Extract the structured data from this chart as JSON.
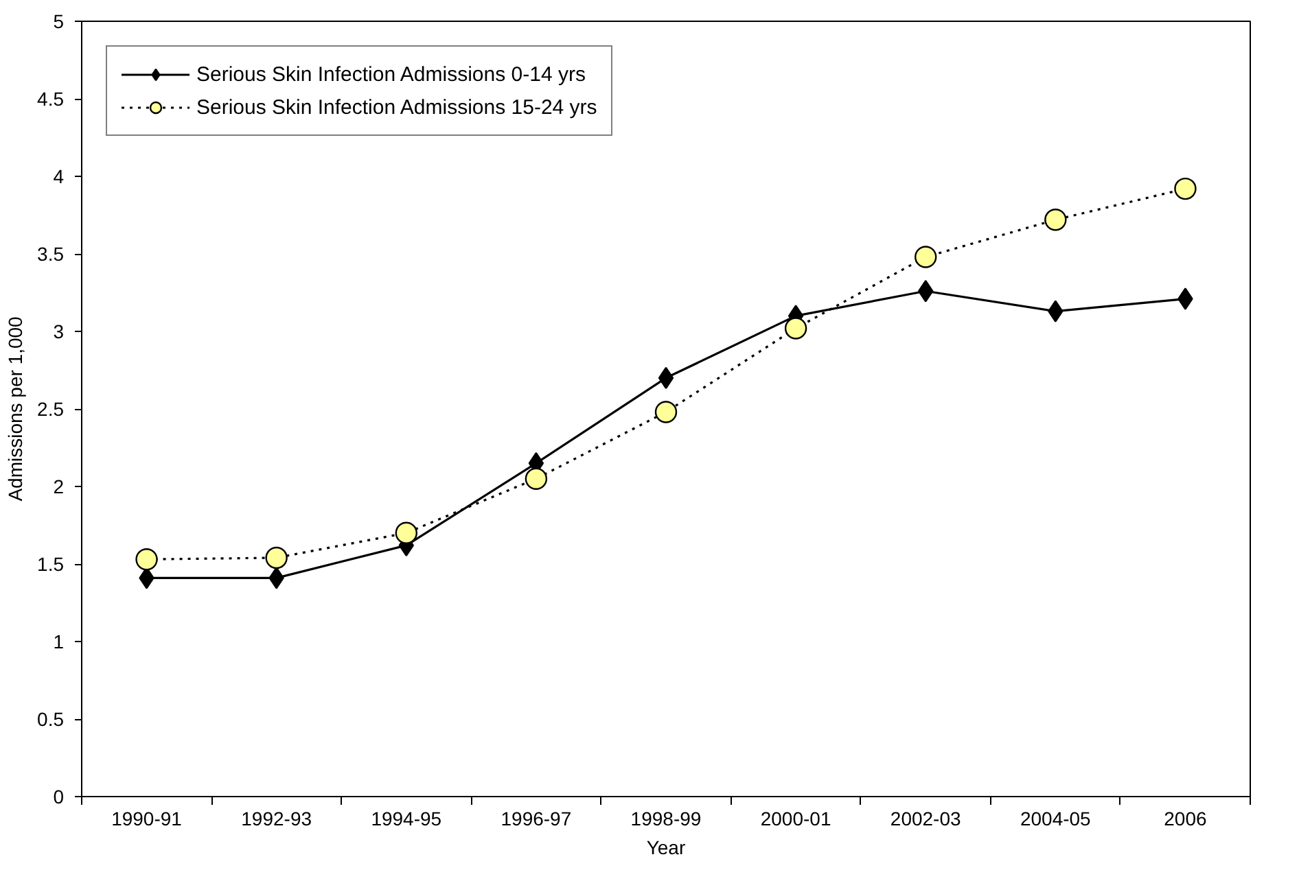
{
  "chart_data": {
    "type": "line",
    "xlabel": "Year",
    "ylabel": "Admissions per 1,000",
    "categories": [
      "1990-91",
      "1992-93",
      "1994-95",
      "1996-97",
      "1998-99",
      "2000-01",
      "2002-03",
      "2004-05",
      "2006"
    ],
    "series": [
      {
        "name": "Serious Skin Infection Admissions 0-14 yrs",
        "color": "#000000",
        "marker": "diamond",
        "line_style": "solid",
        "values": [
          1.41,
          1.41,
          1.62,
          2.15,
          2.7,
          3.1,
          3.26,
          3.13,
          3.21
        ]
      },
      {
        "name": "Serious Skin Infection Admissions 15-24 yrs",
        "color": "#ffff99",
        "marker": "circle",
        "line_style": "dotted",
        "values": [
          1.53,
          1.54,
          1.7,
          2.05,
          2.48,
          3.02,
          3.48,
          3.72,
          3.92
        ]
      }
    ],
    "ylim": [
      0,
      5
    ],
    "yticks": [
      0,
      0.5,
      1,
      1.5,
      2,
      2.5,
      3,
      3.5,
      4,
      4.5,
      5
    ],
    "grid": false,
    "legend": "top left"
  }
}
